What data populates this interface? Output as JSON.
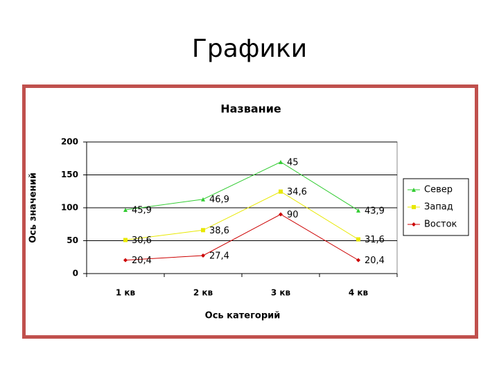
{
  "page_title": "Графики",
  "chart_data": {
    "type": "line",
    "stacked": true,
    "title": "Название",
    "x_label": "Ось категорий",
    "y_label": "Ось значений",
    "categories": [
      "1 кв",
      "2 кв",
      "3 кв",
      "4 кв"
    ],
    "series": [
      {
        "name": "Восток",
        "color": "#cc0000",
        "marker": "diamond",
        "values": [
          20.4,
          27.4,
          90,
          20.4
        ],
        "value_labels": [
          "20,4",
          "27,4",
          "90",
          "20,4"
        ]
      },
      {
        "name": "Запад",
        "color": "#e8e800",
        "marker": "square",
        "values": [
          30.6,
          38.6,
          34.6,
          31.6
        ],
        "value_labels": [
          "30,6",
          "38,6",
          "34,6",
          "31,6"
        ]
      },
      {
        "name": "Север",
        "color": "#33cc33",
        "marker": "triangle",
        "values": [
          45.9,
          46.9,
          45,
          43.9
        ],
        "value_labels": [
          "45,9",
          "46,9",
          "45",
          "43,9"
        ]
      }
    ],
    "legend_order": "reverse",
    "ylim": [
      0,
      200
    ],
    "yticks": [
      0,
      50,
      100,
      150,
      200
    ],
    "grid": true,
    "legend": "right"
  }
}
